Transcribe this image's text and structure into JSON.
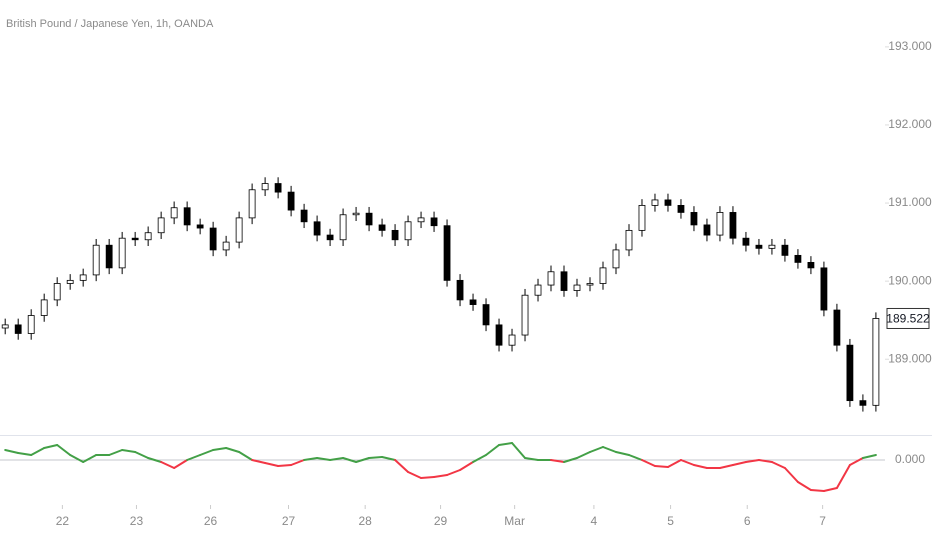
{
  "chart_data": [
    {
      "type": "candlestick",
      "title": "British Pound / Japanese Yen, 1h, OANDA",
      "open": [
        189.4,
        189.44,
        189.33,
        189.56,
        189.76,
        189.97,
        190.01,
        190.08,
        190.46,
        190.17,
        190.55,
        190.53,
        190.62,
        190.81,
        190.94,
        190.72,
        190.68,
        190.4,
        190.5,
        190.81,
        191.17,
        191.25,
        191.14,
        190.91,
        190.76,
        190.59,
        190.53,
        190.85,
        190.87,
        190.72,
        190.65,
        190.53,
        190.76,
        190.81,
        190.71,
        190.01,
        189.76,
        189.7,
        189.44,
        189.18,
        189.31,
        189.82,
        189.95,
        190.12,
        189.88,
        189.95,
        189.97,
        190.17,
        190.4,
        190.65,
        190.97,
        191.04,
        190.97,
        190.88,
        190.72,
        190.59,
        190.88,
        190.55,
        190.46,
        190.42,
        190.46,
        190.33,
        190.24,
        190.17,
        189.63,
        189.18,
        188.47,
        188.41
      ],
      "high": [
        189.52,
        189.52,
        189.64,
        189.84,
        190.05,
        190.09,
        190.16,
        190.54,
        190.54,
        190.63,
        190.63,
        190.7,
        190.89,
        191.02,
        191.02,
        190.8,
        190.76,
        190.58,
        190.89,
        191.25,
        191.33,
        191.33,
        191.22,
        190.99,
        190.84,
        190.67,
        190.93,
        190.95,
        190.95,
        190.8,
        190.73,
        190.84,
        190.89,
        190.89,
        190.79,
        190.09,
        189.84,
        189.78,
        189.52,
        189.39,
        189.9,
        190.03,
        190.2,
        190.2,
        190.03,
        190.05,
        190.25,
        190.48,
        190.73,
        191.05,
        191.12,
        191.12,
        191.05,
        190.96,
        190.8,
        190.96,
        190.96,
        190.63,
        190.54,
        190.54,
        190.54,
        190.41,
        190.32,
        190.25,
        189.71,
        189.26,
        188.55,
        189.6
      ],
      "low": [
        189.32,
        189.25,
        189.25,
        189.48,
        189.68,
        189.89,
        189.93,
        190.0,
        190.09,
        190.09,
        190.45,
        190.45,
        190.54,
        190.73,
        190.64,
        190.6,
        190.32,
        190.32,
        190.42,
        190.73,
        191.09,
        191.06,
        190.83,
        190.68,
        190.51,
        190.45,
        190.45,
        190.77,
        190.64,
        190.57,
        190.45,
        190.45,
        190.68,
        190.63,
        189.93,
        189.68,
        189.62,
        189.36,
        189.1,
        189.1,
        189.23,
        189.74,
        189.87,
        189.8,
        189.8,
        189.87,
        189.89,
        190.09,
        190.32,
        190.57,
        190.89,
        190.89,
        190.8,
        190.64,
        190.51,
        190.51,
        190.47,
        190.38,
        190.34,
        190.34,
        190.25,
        190.16,
        190.09,
        189.55,
        189.1,
        188.39,
        188.33,
        188.33
      ],
      "close": [
        189.44,
        189.33,
        189.56,
        189.76,
        189.97,
        190.01,
        190.08,
        190.46,
        190.17,
        190.55,
        190.53,
        190.62,
        190.81,
        190.94,
        190.72,
        190.68,
        190.4,
        190.5,
        190.81,
        191.17,
        191.25,
        191.14,
        190.91,
        190.76,
        190.59,
        190.53,
        190.85,
        190.87,
        190.72,
        190.65,
        190.53,
        190.76,
        190.81,
        190.71,
        190.01,
        189.76,
        189.7,
        189.44,
        189.18,
        189.31,
        189.82,
        189.95,
        190.12,
        189.88,
        189.95,
        189.97,
        190.17,
        190.4,
        190.65,
        190.97,
        191.04,
        190.97,
        190.88,
        190.72,
        190.59,
        190.88,
        190.55,
        190.46,
        190.42,
        190.46,
        190.33,
        190.24,
        190.17,
        189.63,
        189.18,
        188.47,
        188.41,
        189.522
      ],
      "up_color": "#ffffff",
      "down_color": "#000000",
      "wick_color": "#000000",
      "ylim": [
        188.03,
        193.6
      ],
      "yticks": [
        {
          "value": 189,
          "label": "189.000"
        },
        {
          "value": 190,
          "label": "190.000"
        },
        {
          "value": 191,
          "label": "191.000"
        },
        {
          "value": 192,
          "label": "192.000"
        },
        {
          "value": 193,
          "label": "193.000"
        }
      ],
      "xlim": [
        -0.4,
        67.7
      ],
      "xticks": [
        {
          "value": 4.4,
          "label": "22"
        },
        {
          "value": 10.1,
          "label": "23"
        },
        {
          "value": 15.8,
          "label": "26"
        },
        {
          "value": 21.8,
          "label": "27"
        },
        {
          "value": 27.7,
          "label": "28"
        },
        {
          "value": 33.5,
          "label": "29"
        },
        {
          "value": 39.2,
          "label": "Mar"
        },
        {
          "value": 45.3,
          "label": "4"
        },
        {
          "value": 51.2,
          "label": "5"
        },
        {
          "value": 57.1,
          "label": "6"
        },
        {
          "value": 62.9,
          "label": "7"
        }
      ]
    },
    {
      "type": "line",
      "values": [
        0.1,
        0.07,
        0.05,
        0.12,
        0.15,
        0.05,
        -0.02,
        0.05,
        0.05,
        0.1,
        0.08,
        0.02,
        -0.02,
        -0.08,
        0.0,
        0.05,
        0.1,
        0.12,
        0.08,
        0.0,
        -0.03,
        -0.06,
        -0.05,
        0.0,
        0.02,
        0.0,
        0.02,
        -0.02,
        0.02,
        0.03,
        0.0,
        -0.12,
        -0.18,
        -0.17,
        -0.15,
        -0.1,
        -0.02,
        0.05,
        0.15,
        0.17,
        0.02,
        0.0,
        0.0,
        -0.02,
        0.02,
        0.08,
        0.13,
        0.08,
        0.05,
        0.0,
        -0.06,
        -0.07,
        0.0,
        -0.05,
        -0.08,
        -0.08,
        -0.05,
        -0.02,
        0.0,
        -0.02,
        -0.08,
        -0.22,
        -0.3,
        -0.31,
        -0.28,
        -0.05,
        0.02,
        0.05
      ],
      "up_color": "#43a047",
      "down_color": "#f23645",
      "ylim": [
        -0.45,
        0.23
      ],
      "yticks": [
        {
          "value": 0,
          "label": "0.000"
        }
      ]
    }
  ]
}
